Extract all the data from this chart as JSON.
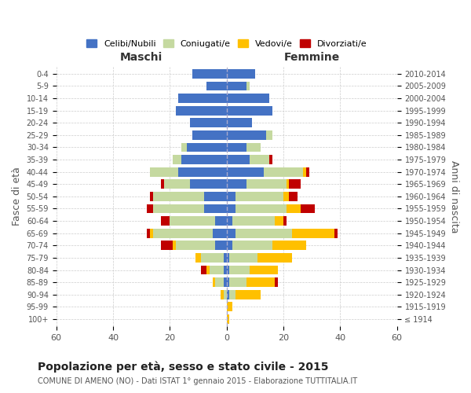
{
  "age_groups": [
    "100+",
    "95-99",
    "90-94",
    "85-89",
    "80-84",
    "75-79",
    "70-74",
    "65-69",
    "60-64",
    "55-59",
    "50-54",
    "45-49",
    "40-44",
    "35-39",
    "30-34",
    "25-29",
    "20-24",
    "15-19",
    "10-14",
    "5-9",
    "0-4"
  ],
  "birth_years": [
    "≤ 1914",
    "1915-1919",
    "1920-1924",
    "1925-1929",
    "1930-1934",
    "1935-1939",
    "1940-1944",
    "1945-1949",
    "1950-1954",
    "1955-1959",
    "1960-1964",
    "1965-1969",
    "1970-1974",
    "1975-1979",
    "1980-1984",
    "1985-1989",
    "1990-1994",
    "1995-1999",
    "2000-2004",
    "2005-2009",
    "2010-2014"
  ],
  "male": {
    "celibi": [
      0,
      0,
      0,
      1,
      1,
      1,
      4,
      5,
      4,
      8,
      8,
      13,
      17,
      16,
      14,
      12,
      13,
      18,
      17,
      7,
      12
    ],
    "coniugati": [
      0,
      0,
      1,
      3,
      5,
      8,
      14,
      21,
      16,
      18,
      18,
      9,
      10,
      3,
      2,
      0,
      0,
      0,
      0,
      0,
      0
    ],
    "vedovi": [
      0,
      0,
      1,
      1,
      1,
      2,
      1,
      1,
      0,
      0,
      0,
      0,
      0,
      0,
      0,
      0,
      0,
      0,
      0,
      0,
      0
    ],
    "divorziati": [
      0,
      0,
      0,
      0,
      2,
      0,
      4,
      1,
      3,
      2,
      1,
      1,
      0,
      0,
      0,
      0,
      0,
      0,
      0,
      0,
      0
    ]
  },
  "female": {
    "nubili": [
      0,
      0,
      1,
      1,
      1,
      1,
      2,
      3,
      2,
      3,
      3,
      7,
      13,
      8,
      7,
      14,
      9,
      16,
      15,
      7,
      10
    ],
    "coniugate": [
      0,
      0,
      2,
      6,
      7,
      10,
      14,
      20,
      15,
      18,
      17,
      14,
      14,
      7,
      5,
      2,
      0,
      0,
      0,
      1,
      0
    ],
    "vedove": [
      1,
      2,
      9,
      10,
      10,
      12,
      12,
      15,
      3,
      5,
      2,
      1,
      1,
      0,
      0,
      0,
      0,
      0,
      0,
      0,
      0
    ],
    "divorziate": [
      0,
      0,
      0,
      1,
      0,
      0,
      0,
      1,
      1,
      5,
      3,
      4,
      1,
      1,
      0,
      0,
      0,
      0,
      0,
      0,
      0
    ]
  },
  "colors": {
    "celibi": "#4472c4",
    "coniugati": "#c5d9a0",
    "vedovi": "#ffc000",
    "divorziati": "#c00000"
  },
  "title": "Popolazione per età, sesso e stato civile - 2015",
  "subtitle": "COMUNE DI AMENO (NO) - Dati ISTAT 1° gennaio 2015 - Elaborazione TUTTITALIA.IT",
  "xlabel_left": "Maschi",
  "xlabel_right": "Femmine",
  "ylabel_left": "Fasce di età",
  "ylabel_right": "Anni di nascita",
  "xlim": 60,
  "legend_labels": [
    "Celibi/Nubili",
    "Coniugati/e",
    "Vedovi/e",
    "Divorziati/e"
  ],
  "bg_color": "#ffffff",
  "grid_color": "#cccccc"
}
